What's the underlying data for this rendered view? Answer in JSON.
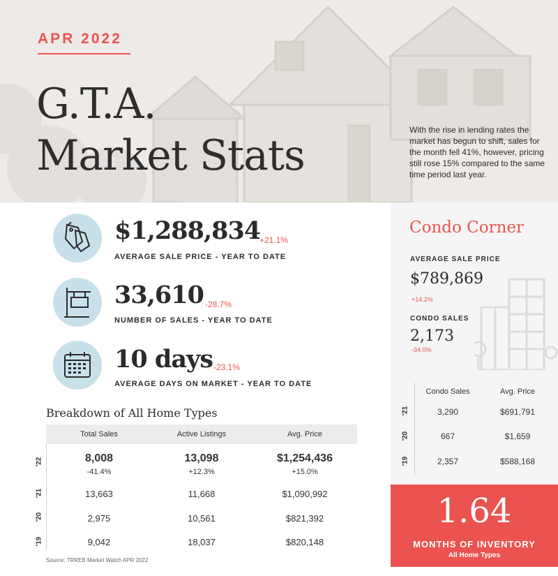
{
  "header": {
    "date": "APR 2022",
    "title_line1": "G.T.A.",
    "title_line2": "Market Stats",
    "intro": "With the rise in lending rates the market has begun to shift, sales for the month fell 41%, however, pricing still rose 15% compared to the same time period last year."
  },
  "stats": [
    {
      "icon": "price-tag-icon",
      "value": "$1,288,834",
      "change": "+21.1%",
      "label": "AVERAGE SALE PRICE - YEAR TO DATE"
    },
    {
      "icon": "for-sale-sign-icon",
      "value": "33,610",
      "change": "-28.7%",
      "label": "NUMBER OF SALES - YEAR TO DATE"
    },
    {
      "icon": "calendar-icon",
      "value": "10 days",
      "change": "-23.1%",
      "label": "AVERAGE DAYS ON MARKET - YEAR TO DATE"
    }
  ],
  "breakdown": {
    "title": "Breakdown of All Home Types",
    "columns": [
      "Total Sales",
      "Active Listings",
      "Avg. Price"
    ],
    "rows": [
      {
        "year": "'22",
        "values": [
          "8,008",
          "13,098",
          "$1,254,436"
        ],
        "changes": [
          "-41.4%",
          "+12.3%",
          "+15.0%"
        ]
      },
      {
        "year": "'21",
        "values": [
          "13,663",
          "11,668",
          "$1,090,992"
        ]
      },
      {
        "year": "'20",
        "values": [
          "2,975",
          "10,561",
          "$821,392"
        ]
      },
      {
        "year": "'19",
        "values": [
          "9,042",
          "18,037",
          "$820,148"
        ]
      }
    ],
    "source": "Source: TRREB Market Watch APR 2022"
  },
  "condo": {
    "title": "Condo Corner",
    "avg_price_label": "AVERAGE SALE PRICE",
    "avg_price_value": "$789,869",
    "avg_price_change": "+14.2%",
    "sales_label": "CONDO SALES",
    "sales_value": "2,173",
    "sales_change": "-34.0%",
    "columns": [
      "Condo Sales",
      "Avg. Price"
    ],
    "rows": [
      {
        "year": "'21",
        "values": [
          "3,290",
          "$691,791"
        ]
      },
      {
        "year": "'20",
        "values": [
          "667",
          "$1,659"
        ]
      },
      {
        "year": "'19",
        "values": [
          "2,357",
          "$588,168"
        ]
      }
    ]
  },
  "inventory": {
    "value": "1.64",
    "label": "MONTHS OF INVENTORY",
    "sub": "All Home Types"
  },
  "colors": {
    "accent": "#e8554e",
    "icon_circle": "#c8e0ea",
    "moi_bg": "#ea5350"
  }
}
